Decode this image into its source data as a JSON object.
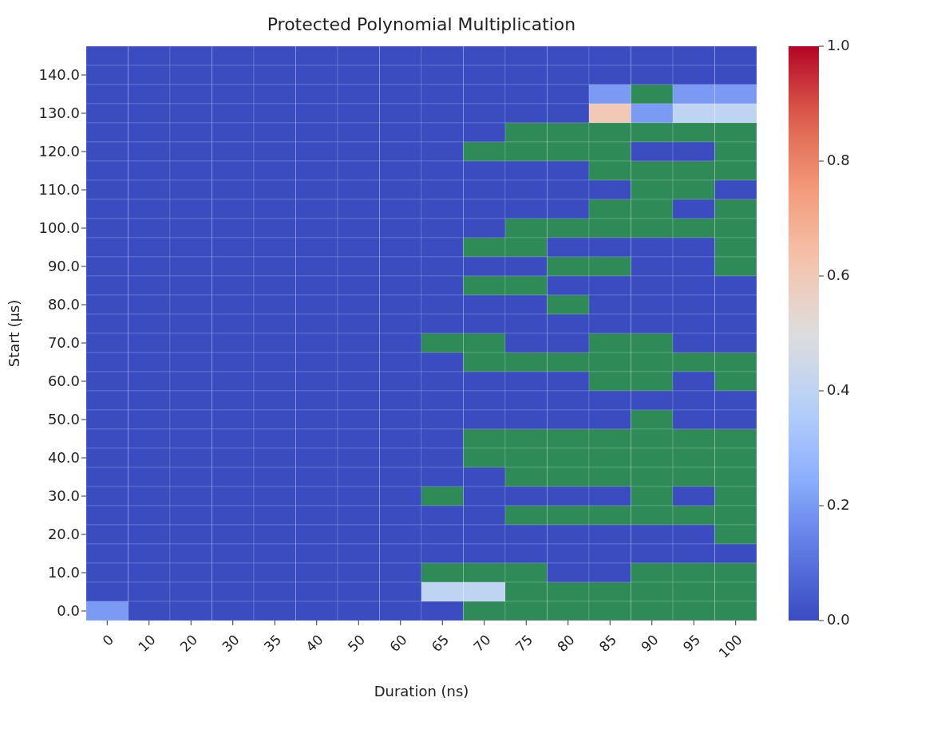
{
  "chart_data": {
    "type": "heatmap",
    "title": "Protected Polynomial Multiplication",
    "xlabel": "Duration (ns)",
    "ylabel": "Start (μs)",
    "categories": [
      "0",
      "10",
      "20",
      "30",
      "35",
      "40",
      "50",
      "60",
      "65",
      "70",
      "75",
      "80",
      "85",
      "90",
      "95",
      "100"
    ],
    "y_categories": [
      null,
      "140.0",
      null,
      "130.0",
      null,
      "120.0",
      null,
      "110.0",
      null,
      "100.0",
      null,
      "90.0",
      null,
      "80.0",
      null,
      "70.0",
      null,
      "60.0",
      null,
      "50.0",
      null,
      "40.0",
      null,
      "30.0",
      null,
      "20.0",
      null,
      "10.0",
      null,
      "0.0"
    ],
    "cells": [
      [
        0,
        0,
        0,
        0,
        0,
        0,
        0,
        0,
        0,
        0,
        0,
        0,
        0,
        0,
        0,
        0
      ],
      [
        0,
        0,
        0,
        0,
        0,
        0,
        0,
        0,
        0,
        0,
        0,
        0,
        0,
        0,
        0,
        0
      ],
      [
        0,
        0,
        0,
        0,
        0,
        0,
        0,
        0,
        0,
        0,
        0,
        0,
        0.2,
        null,
        0.2,
        0.2
      ],
      [
        0,
        0,
        0,
        0,
        0,
        0,
        0,
        0,
        0,
        0,
        0,
        0,
        0.6,
        0.2,
        0.4,
        0.4
      ],
      [
        0,
        0,
        0,
        0,
        0,
        0,
        0,
        0,
        0,
        0,
        null,
        null,
        null,
        null,
        null,
        null
      ],
      [
        0,
        0,
        0,
        0,
        0,
        0,
        0,
        0,
        0,
        null,
        null,
        null,
        null,
        0,
        0,
        null
      ],
      [
        0,
        0,
        0,
        0,
        0,
        0,
        0,
        0,
        0,
        0,
        0,
        0,
        null,
        null,
        null,
        null
      ],
      [
        0,
        0,
        0,
        0,
        0,
        0,
        0,
        0,
        0,
        0,
        0,
        0,
        0,
        null,
        null,
        0
      ],
      [
        0,
        0,
        0,
        0,
        0,
        0,
        0,
        0,
        0,
        0,
        0,
        0,
        null,
        null,
        0,
        null
      ],
      [
        0,
        0,
        0,
        0,
        0,
        0,
        0,
        0,
        0,
        0,
        null,
        null,
        null,
        null,
        null,
        null
      ],
      [
        0,
        0,
        0,
        0,
        0,
        0,
        0,
        0,
        0,
        null,
        null,
        0,
        0,
        0,
        0,
        null
      ],
      [
        0,
        0,
        0,
        0,
        0,
        0,
        0,
        0,
        0,
        0,
        0,
        null,
        null,
        0,
        0,
        null
      ],
      [
        0,
        0,
        0,
        0,
        0,
        0,
        0,
        0,
        0,
        null,
        null,
        0,
        0,
        0,
        0,
        0
      ],
      [
        0,
        0,
        0,
        0,
        0,
        0,
        0,
        0,
        0,
        0,
        0,
        null,
        0,
        0,
        0,
        0
      ],
      [
        0,
        0,
        0,
        0,
        0,
        0,
        0,
        0,
        0,
        0,
        0,
        0,
        0,
        0,
        0,
        0
      ],
      [
        0,
        0,
        0,
        0,
        0,
        0,
        0,
        0,
        null,
        null,
        0,
        0,
        null,
        null,
        0,
        0
      ],
      [
        0,
        0,
        0,
        0,
        0,
        0,
        0,
        0,
        0,
        null,
        null,
        null,
        null,
        null,
        null,
        null
      ],
      [
        0,
        0,
        0,
        0,
        0,
        0,
        0,
        0,
        0,
        0,
        0,
        0,
        null,
        null,
        0,
        null
      ],
      [
        0,
        0,
        0,
        0,
        0,
        0,
        0,
        0,
        0,
        0,
        0,
        0,
        0,
        0,
        0,
        0
      ],
      [
        0,
        0,
        0,
        0,
        0,
        0,
        0,
        0,
        0,
        0,
        0,
        0,
        0,
        null,
        0,
        0
      ],
      [
        0,
        0,
        0,
        0,
        0,
        0,
        0,
        0,
        0,
        null,
        null,
        null,
        null,
        null,
        null,
        null
      ],
      [
        0,
        0,
        0,
        0,
        0,
        0,
        0,
        0,
        0,
        null,
        null,
        null,
        null,
        null,
        null,
        null
      ],
      [
        0,
        0,
        0,
        0,
        0,
        0,
        0,
        0,
        0,
        0,
        null,
        null,
        null,
        null,
        null,
        null
      ],
      [
        0,
        0,
        0,
        0,
        0,
        0,
        0,
        0,
        null,
        0,
        0,
        0,
        0,
        null,
        0,
        null
      ],
      [
        0,
        0,
        0,
        0,
        0,
        0,
        0,
        0,
        0,
        0,
        null,
        null,
        null,
        null,
        null,
        null
      ],
      [
        0,
        0,
        0,
        0,
        0,
        0,
        0,
        0,
        0,
        0,
        0,
        0,
        0,
        0,
        0,
        null
      ],
      [
        0,
        0,
        0,
        0,
        0,
        0,
        0,
        0,
        0,
        0,
        0,
        0,
        0,
        0,
        0,
        0
      ],
      [
        0,
        0,
        0,
        0,
        0,
        0,
        0,
        0,
        null,
        null,
        null,
        0,
        0,
        null,
        null,
        null
      ],
      [
        0,
        0,
        0,
        0,
        0,
        0,
        0,
        0,
        0.4,
        0.4,
        null,
        null,
        null,
        null,
        null,
        null
      ],
      [
        0.2,
        0,
        0,
        0,
        0,
        0,
        0,
        0,
        0,
        null,
        null,
        null,
        null,
        null,
        null,
        null
      ]
    ],
    "clim": [
      0,
      1
    ],
    "cticks": [
      {
        "value": 0,
        "label": "0.0"
      },
      {
        "value": 0.2,
        "label": "0.2"
      },
      {
        "value": 0.4,
        "label": "0.4"
      },
      {
        "value": 0.6,
        "label": "0.6"
      },
      {
        "value": 0.8,
        "label": "0.8"
      },
      {
        "value": 1,
        "label": "1.0"
      }
    ]
  }
}
